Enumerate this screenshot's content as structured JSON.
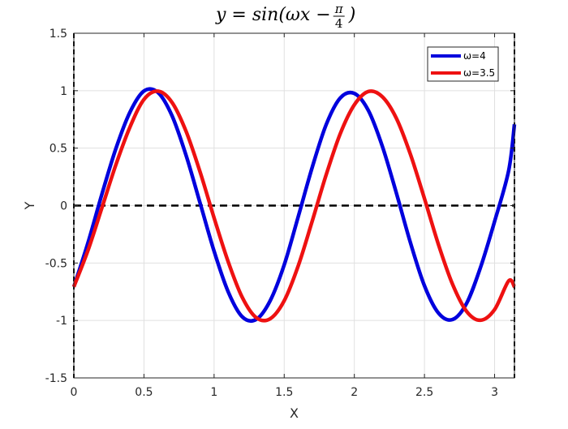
{
  "chart_data": {
    "type": "line",
    "title": {
      "prefix": "y = sin(ωx − ",
      "frac_num": "π",
      "frac_den": "4",
      "suffix": ")"
    },
    "xlabel": "X",
    "ylabel": "Y",
    "xlim": [
      0,
      3.14159
    ],
    "ylim": [
      -1.5,
      1.5
    ],
    "xticks": [
      0,
      0.5,
      1,
      1.5,
      2,
      2.5,
      3
    ],
    "xtick_labels": [
      "0",
      "0.5",
      "1",
      "1.5",
      "2",
      "2.5",
      "3"
    ],
    "yticks": [
      -1.5,
      -1,
      -0.5,
      0,
      0.5,
      1,
      1.5
    ],
    "ytick_labels": [
      "-1.5",
      "-1",
      "-0.5",
      "0",
      "0.5",
      "1",
      "1.5"
    ],
    "grid": true,
    "legend_position": "top-right",
    "reference_line": {
      "y": 0,
      "style": "dashed",
      "color": "#000000"
    },
    "series": [
      {
        "name": "ω=4",
        "color": "#0000dd",
        "x": [
          0,
          0.1,
          0.2,
          0.3,
          0.4,
          0.5,
          0.6,
          0.7,
          0.8,
          0.9,
          1.0,
          1.1,
          1.2,
          1.3,
          1.4,
          1.5,
          1.6,
          1.7,
          1.8,
          1.9,
          2.0,
          2.1,
          2.2,
          2.3,
          2.4,
          2.5,
          2.6,
          2.7,
          2.8,
          2.9,
          3.0,
          3.1,
          3.14159
        ],
        "y": [
          -0.707,
          -0.327,
          0.099,
          0.497,
          0.813,
          0.997,
          0.984,
          0.782,
          0.438,
          0.023,
          -0.397,
          -0.749,
          -0.967,
          -0.991,
          -0.828,
          -0.516,
          -0.096,
          0.334,
          0.707,
          0.937,
          0.976,
          0.828,
          0.515,
          0.108,
          -0.323,
          -0.698,
          -0.936,
          -0.992,
          -0.852,
          -0.537,
          -0.138,
          0.302,
          0.707
        ]
      },
      {
        "name": "ω=3.5",
        "color": "#ee1111",
        "x": [
          0,
          0.1,
          0.2,
          0.3,
          0.4,
          0.5,
          0.6,
          0.7,
          0.8,
          0.9,
          1.0,
          1.1,
          1.2,
          1.3,
          1.4,
          1.5,
          1.6,
          1.7,
          1.8,
          1.9,
          2.0,
          2.1,
          2.2,
          2.3,
          2.4,
          2.5,
          2.6,
          2.7,
          2.8,
          2.9,
          3.0,
          3.1,
          3.14159
        ],
        "y": [
          -0.707,
          -0.393,
          -0.02,
          0.356,
          0.683,
          0.924,
          0.996,
          0.898,
          0.647,
          0.293,
          -0.107,
          -0.487,
          -0.797,
          -0.975,
          -0.985,
          -0.828,
          -0.524,
          -0.134,
          0.271,
          0.627,
          0.877,
          0.993,
          0.947,
          0.759,
          0.446,
          0.061,
          -0.34,
          -0.684,
          -0.92,
          -0.998,
          -0.905,
          -0.656,
          -0.707
        ]
      }
    ]
  }
}
